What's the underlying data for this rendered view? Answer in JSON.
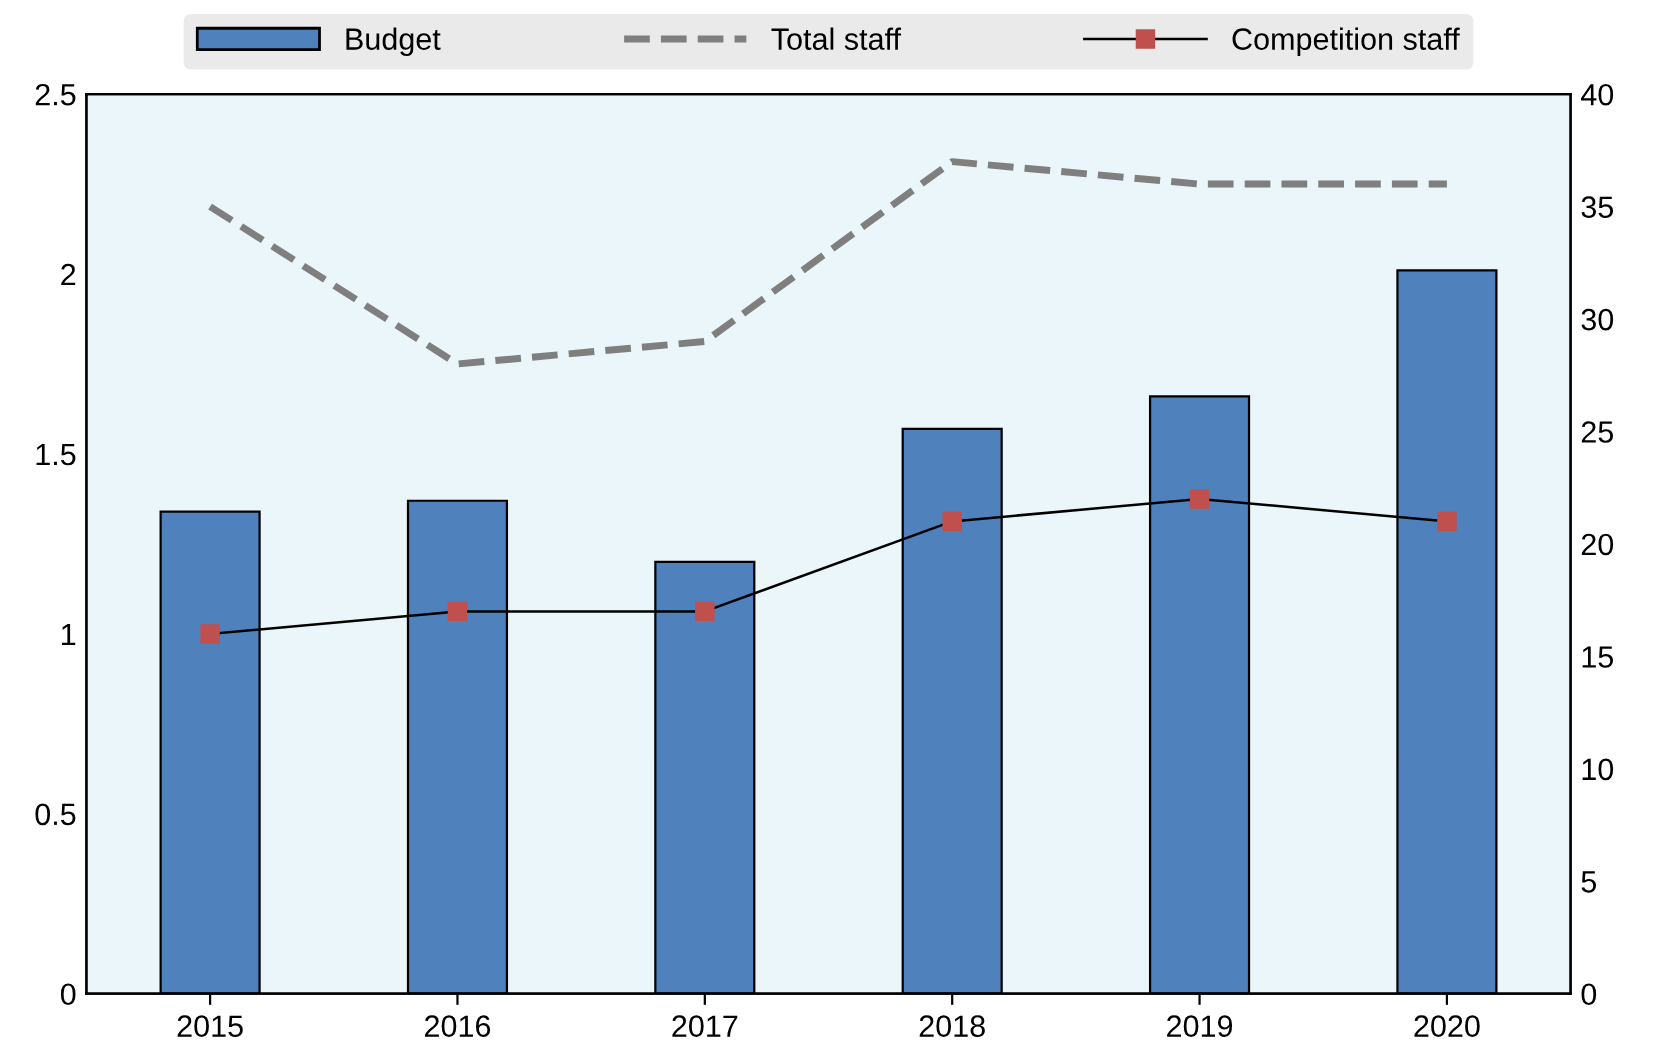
{
  "chart_data": {
    "type": "bar",
    "categories": [
      "2015",
      "2016",
      "2017",
      "2018",
      "2019",
      "2020"
    ],
    "series": [
      {
        "name": "Budget",
        "color": "#4f81bd",
        "values": [
          1.34,
          1.37,
          1.2,
          1.57,
          1.66,
          2.01
        ]
      },
      {
        "name": "Total staff",
        "type": "line",
        "axis": "y2",
        "color": "#7f7f7f",
        "line_style": "dashed",
        "marker": "none",
        "values": [
          35,
          28,
          29,
          37,
          36,
          36
        ]
      },
      {
        "name": "Competition staff",
        "type": "line",
        "axis": "y2",
        "color": "#c0504d",
        "line_style": "solid",
        "marker": "square",
        "values": [
          16,
          17,
          17,
          21,
          22,
          21
        ]
      }
    ],
    "ylim": [
      0,
      2.5
    ],
    "yticks": [
      0,
      0.5,
      1,
      1.5,
      2,
      2.5
    ],
    "y2lim": [
      0,
      40
    ],
    "y2ticks": [
      0,
      5,
      10,
      15,
      20,
      25,
      30,
      35,
      40
    ],
    "grid": false,
    "legend": "top"
  }
}
